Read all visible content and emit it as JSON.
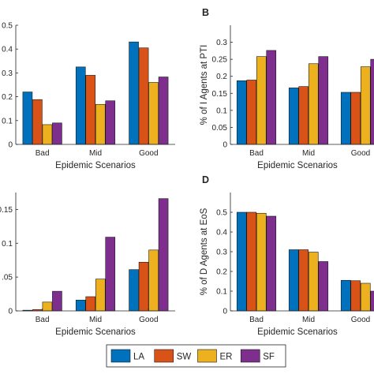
{
  "legend": {
    "items": [
      {
        "label": "LA",
        "color": "#0072BD"
      },
      {
        "label": "SW",
        "color": "#D95319"
      },
      {
        "label": "ER",
        "color": "#EDB120"
      },
      {
        "label": "SF",
        "color": "#7E2F8E"
      }
    ]
  },
  "chart_data": [
    {
      "type": "bar",
      "panel_label": "",
      "categories": [
        "Bad",
        "Mid",
        "Good"
      ],
      "series": [
        {
          "name": "LA",
          "values": [
            0.22,
            0.325,
            0.43
          ]
        },
        {
          "name": "SW",
          "values": [
            0.188,
            0.29,
            0.405
          ]
        },
        {
          "name": "ER",
          "values": [
            0.083,
            0.168,
            0.26
          ]
        },
        {
          "name": "SF",
          "values": [
            0.09,
            0.183,
            0.283
          ]
        }
      ],
      "xlabel": "Epidemic Scenarios",
      "ylabel": "",
      "ylim": [
        0,
        0.5
      ],
      "yticks": [
        "0",
        "0.1",
        "0.2",
        "0.3",
        "0.4",
        "0.5"
      ]
    },
    {
      "type": "bar",
      "panel_label": "B",
      "categories": [
        "Bad",
        "Mid",
        "Good"
      ],
      "series": [
        {
          "name": "LA",
          "values": [
            0.187,
            0.166,
            0.153
          ]
        },
        {
          "name": "SW",
          "values": [
            0.189,
            0.17,
            0.153
          ]
        },
        {
          "name": "ER",
          "values": [
            0.258,
            0.237,
            0.228
          ]
        },
        {
          "name": "SF",
          "values": [
            0.276,
            0.258,
            0.25
          ]
        }
      ],
      "xlabel": "Epidemic Scenarios",
      "ylabel": "% of I Agents at PTI",
      "ylim": [
        0,
        0.35
      ],
      "yticks": [
        "0",
        "0.05",
        "0.1",
        "0.15",
        "0.2",
        "0.25",
        "0.3"
      ]
    },
    {
      "type": "bar",
      "panel_label": "",
      "categories": [
        "Bad",
        "Mid",
        "Good"
      ],
      "series": [
        {
          "name": "LA",
          "values": [
            0.001,
            0.016,
            0.061
          ]
        },
        {
          "name": "SW",
          "values": [
            0.002,
            0.021,
            0.072
          ]
        },
        {
          "name": "ER",
          "values": [
            0.013,
            0.047,
            0.09
          ]
        },
        {
          "name": "SF",
          "values": [
            0.029,
            0.109,
            0.166
          ]
        }
      ],
      "xlabel": "Epidemic Scenarios",
      "ylabel": "",
      "ylim": [
        0,
        0.175
      ],
      "yticks": [
        "0",
        ".05",
        "0.1",
        "0.15"
      ]
    },
    {
      "type": "bar",
      "panel_label": "D",
      "categories": [
        "Bad",
        "Mid",
        "Good"
      ],
      "series": [
        {
          "name": "LA",
          "values": [
            0.5,
            0.31,
            0.155
          ]
        },
        {
          "name": "SW",
          "values": [
            0.5,
            0.31,
            0.153
          ]
        },
        {
          "name": "ER",
          "values": [
            0.495,
            0.298,
            0.14
          ]
        },
        {
          "name": "SF",
          "values": [
            0.48,
            0.25,
            0.1
          ]
        }
      ],
      "xlabel": "Epidemic Scenarios",
      "ylabel": "% of D Agents at EoS",
      "ylim": [
        0,
        0.6
      ],
      "yticks": [
        "0",
        "0.1",
        "0.2",
        "0.3",
        "0.4",
        "0.5"
      ]
    }
  ]
}
